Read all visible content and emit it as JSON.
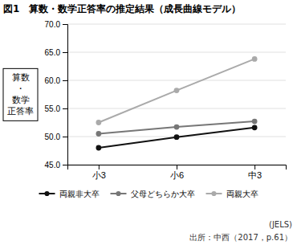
{
  "chart_data": {
    "type": "line",
    "title": "図1　算数・数学正答率の推定結果（成長曲線モデル）",
    "ylabel": "算数\n・\n数学\n正答率",
    "categories": [
      "小3",
      "小6",
      "中3"
    ],
    "series": [
      {
        "name": "両親非大卒",
        "color": "#111111",
        "marker": "circle",
        "values": [
          48.0,
          49.9,
          51.6
        ]
      },
      {
        "name": "父母どちらか大卒",
        "color": "#777777",
        "marker": "circle",
        "values": [
          50.5,
          51.7,
          52.7
        ]
      },
      {
        "name": "両親大卒",
        "color": "#aaaaaa",
        "marker": "circle",
        "values": [
          52.5,
          58.2,
          63.8
        ]
      }
    ],
    "ylim": [
      45.0,
      70.0
    ],
    "yticks": [
      {
        "value": 45.0,
        "label": "45.0"
      },
      {
        "value": 50.0,
        "label": "50.0"
      },
      {
        "value": 55.0,
        "label": "55.0"
      },
      {
        "value": 60.0,
        "label": "60.0"
      },
      {
        "value": 65.0,
        "label": "65.0"
      },
      {
        "value": 70.0,
        "label": "70.0"
      }
    ],
    "grid": true,
    "legend": "bottom",
    "annotations": [
      "(JELS)",
      "出所：中西（2017，p.61）"
    ]
  }
}
